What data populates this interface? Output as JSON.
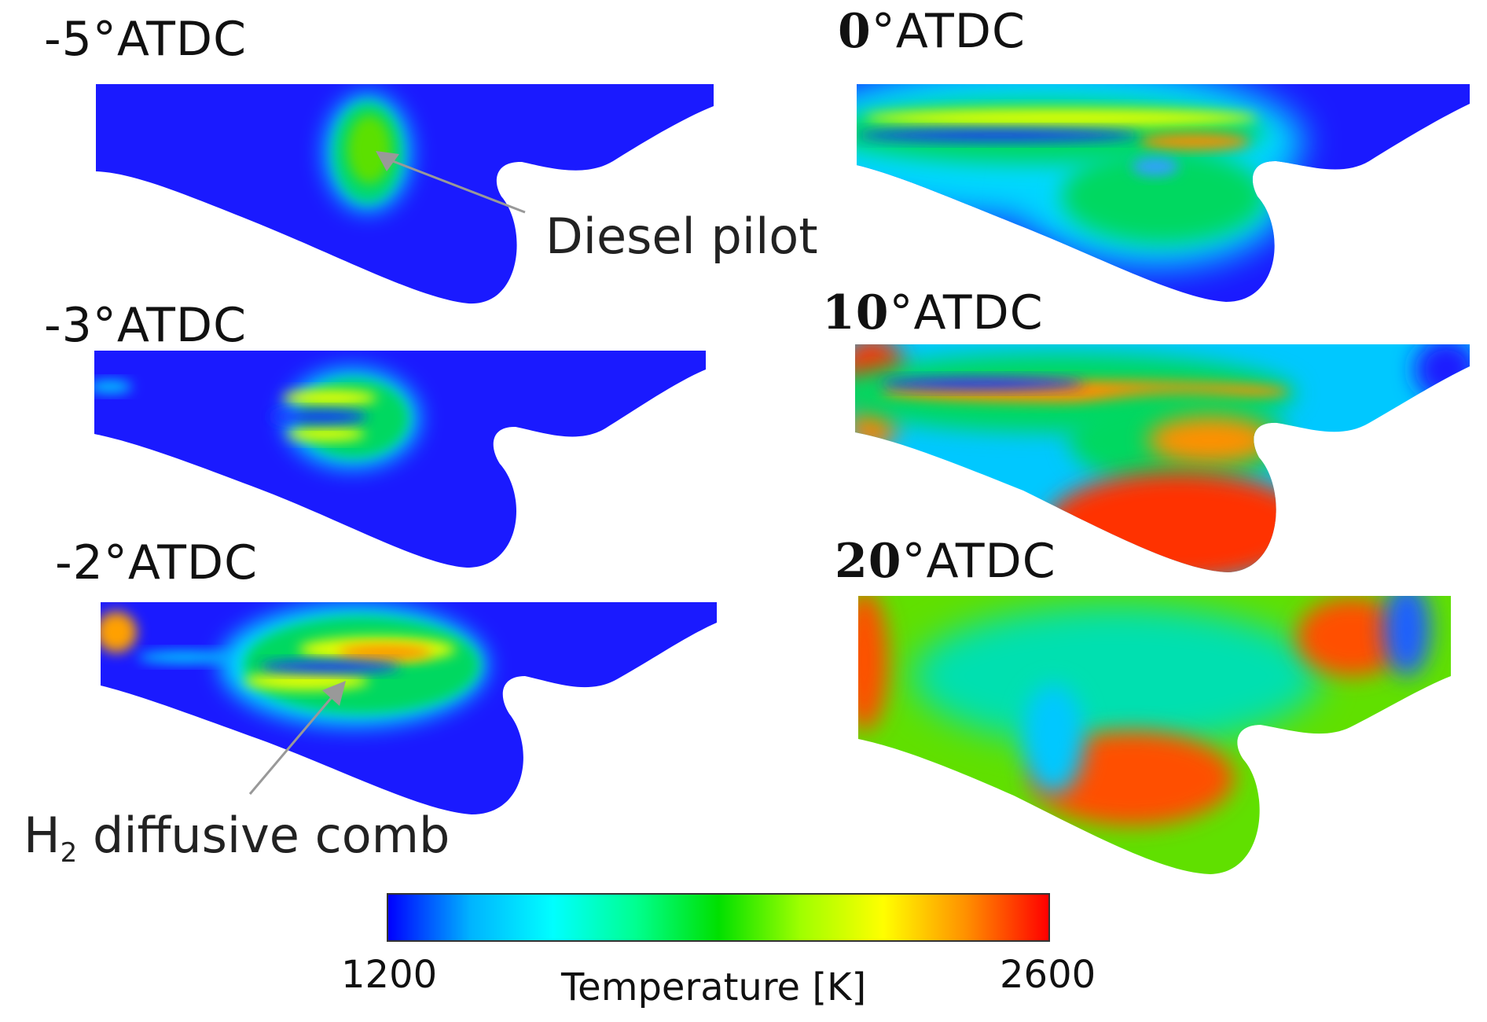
{
  "panels": [
    {
      "id": "m5",
      "title_num": "-5",
      "title_rest": "°ATDC"
    },
    {
      "id": "m3",
      "title_num": "-3",
      "title_rest": "°ATDC"
    },
    {
      "id": "m2",
      "title_num": "-2",
      "title_rest": "°ATDC"
    },
    {
      "id": "p0",
      "title_num": "0",
      "title_rest": "°ATDC"
    },
    {
      "id": "p10",
      "title_num": "10",
      "title_rest": "°ATDC"
    },
    {
      "id": "p20",
      "title_num": "20",
      "title_rest": "°ATDC"
    }
  ],
  "annotations": {
    "diesel_pilot": "Diesel pilot",
    "h2_main": "H",
    "h2_sub": "2",
    "h2_rest": " diffusive comb"
  },
  "colorbar": {
    "min_label": "1200",
    "max_label": "2600",
    "title": "Temperature [K]",
    "min_value": 1200,
    "max_value": 2600,
    "colors": [
      "#0000ff",
      "#00b4ff",
      "#00ffff",
      "#00ff90",
      "#00e000",
      "#a0ff00",
      "#ffff00",
      "#ff9000",
      "#ff0000"
    ]
  },
  "field_colors": {
    "cold": "#1a1aff",
    "cyan": "#00e0ff",
    "green": "#00d830",
    "yellow": "#e8ff00",
    "orange": "#ff8c00",
    "red": "#ff2000"
  }
}
